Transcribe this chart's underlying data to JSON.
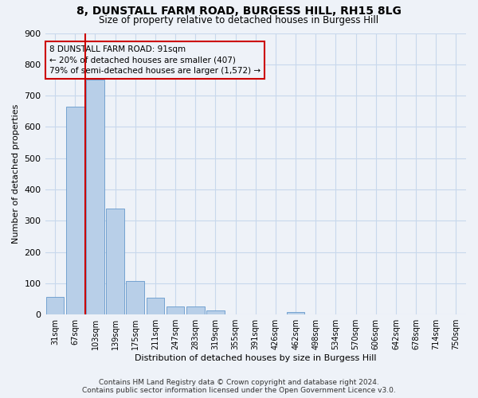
{
  "title1": "8, DUNSTALL FARM ROAD, BURGESS HILL, RH15 8LG",
  "title2": "Size of property relative to detached houses in Burgess Hill",
  "xlabel": "Distribution of detached houses by size in Burgess Hill",
  "ylabel": "Number of detached properties",
  "bin_labels": [
    "31sqm",
    "67sqm",
    "103sqm",
    "139sqm",
    "175sqm",
    "211sqm",
    "247sqm",
    "283sqm",
    "319sqm",
    "355sqm",
    "391sqm",
    "426sqm",
    "462sqm",
    "498sqm",
    "534sqm",
    "570sqm",
    "606sqm",
    "642sqm",
    "678sqm",
    "714sqm",
    "750sqm"
  ],
  "bar_heights": [
    57,
    665,
    750,
    338,
    108,
    55,
    27,
    25,
    12,
    0,
    0,
    0,
    7,
    0,
    0,
    0,
    0,
    0,
    0,
    0,
    0
  ],
  "bar_color": "#b8cfe8",
  "bar_edge_color": "#6699cc",
  "grid_color": "#c8d8ec",
  "vline_x": 1.5,
  "vline_color": "#cc0000",
  "annotation_text": "8 DUNSTALL FARM ROAD: 91sqm\n← 20% of detached houses are smaller (407)\n79% of semi-detached houses are larger (1,572) →",
  "annotation_box_color": "#cc0000",
  "ylim": [
    0,
    900
  ],
  "yticks": [
    0,
    100,
    200,
    300,
    400,
    500,
    600,
    700,
    800,
    900
  ],
  "footer1": "Contains HM Land Registry data © Crown copyright and database right 2024.",
  "footer2": "Contains public sector information licensed under the Open Government Licence v3.0.",
  "bg_color": "#eef2f8"
}
